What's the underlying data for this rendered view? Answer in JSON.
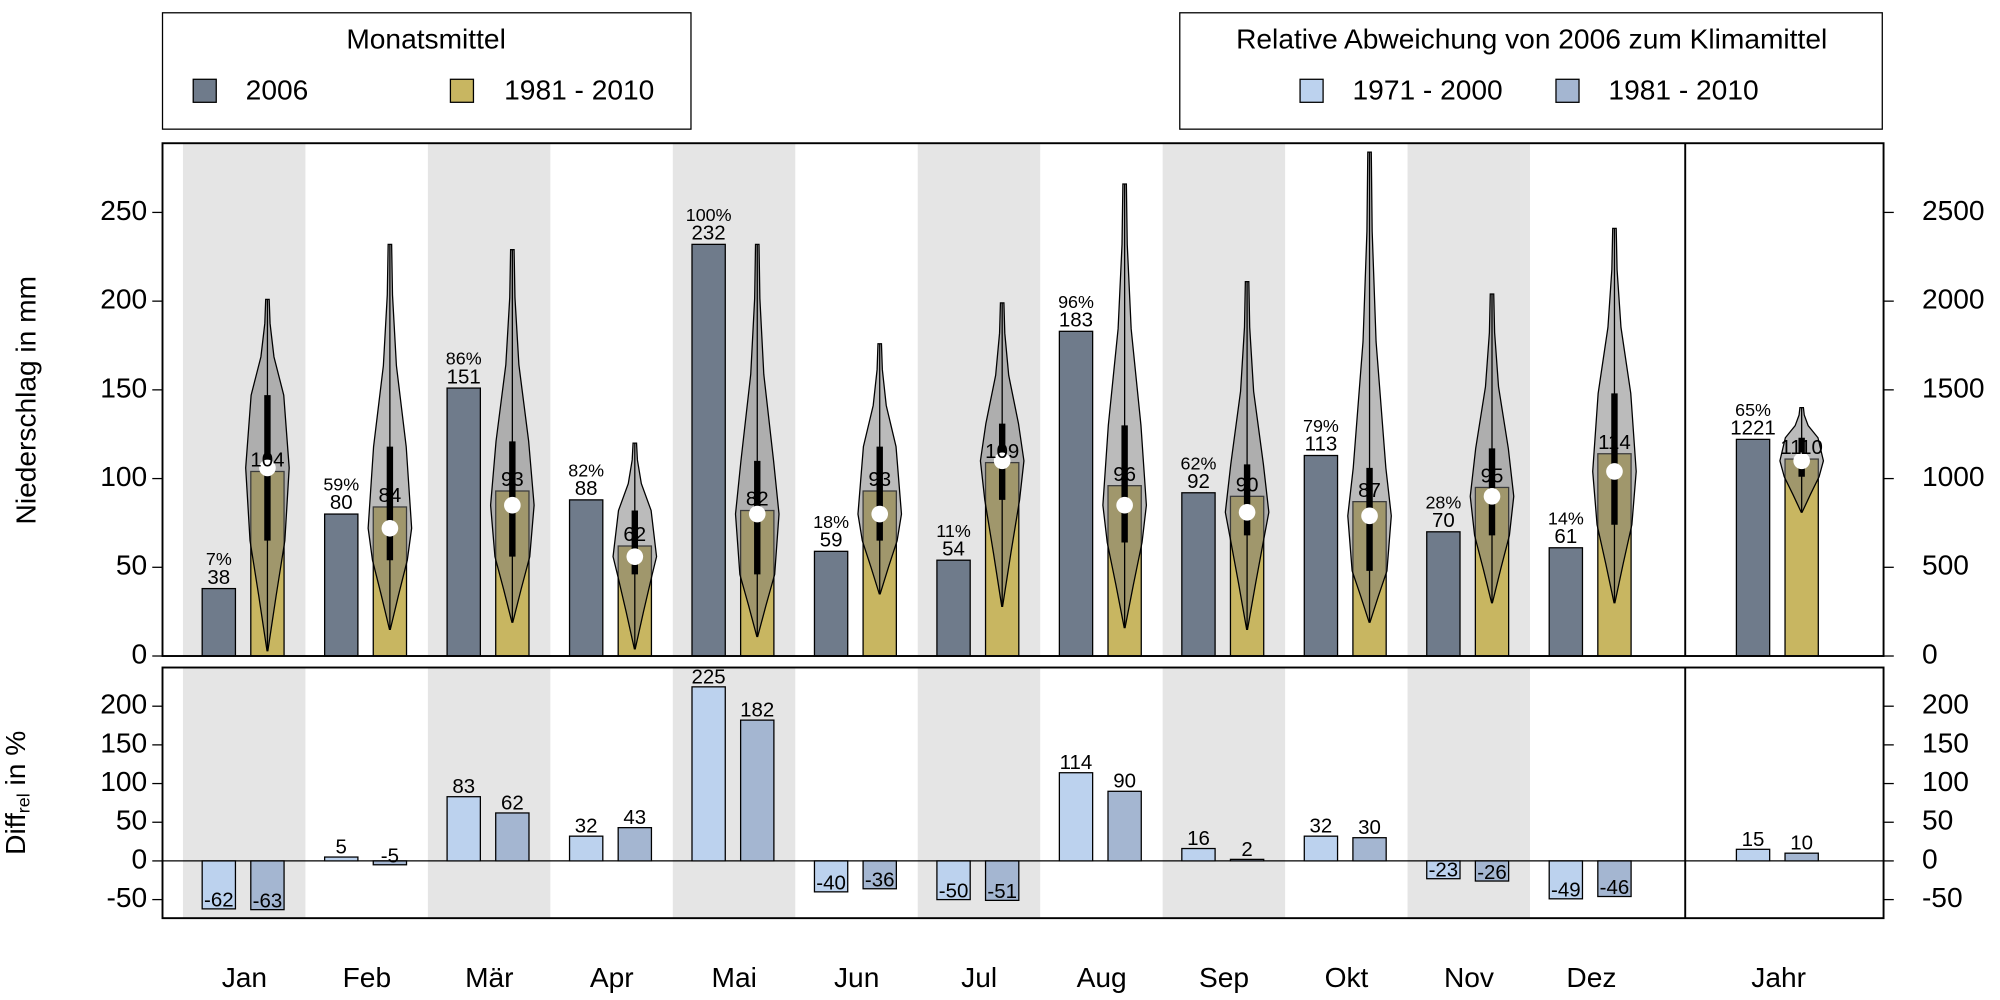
{
  "chart_data": [
    {
      "type": "bar",
      "ylabel": "Niederschlag in mm",
      "legend_title": "Monatsmittel",
      "categories": [
        "Jan",
        "Feb",
        "Mär",
        "Apr",
        "Mai",
        "Jun",
        "Jul",
        "Aug",
        "Sep",
        "Okt",
        "Nov",
        "Dez",
        "Jahr"
      ],
      "y2_category": "Jahr",
      "series": [
        {
          "name": "2006",
          "color": "#6f7b8b",
          "values": [
            38,
            80,
            151,
            88,
            232,
            59,
            54,
            183,
            92,
            113,
            70,
            61,
            1221
          ],
          "percent_labels": [
            "7%",
            "59%",
            "86%",
            "82%",
            "100%",
            "18%",
            "11%",
            "96%",
            "62%",
            "79%",
            "28%",
            "14%",
            "65%"
          ]
        },
        {
          "name": "1981 - 2010",
          "color": "#c8b661",
          "values": [
            104,
            84,
            93,
            62,
            82,
            93,
            109,
            96,
            90,
            87,
            95,
            114,
            1110
          ]
        }
      ],
      "violin_min": [
        3,
        15,
        19,
        4,
        11,
        35,
        28,
        16,
        15,
        19,
        30,
        30,
        810
      ],
      "violin_max": [
        201,
        232,
        229,
        120,
        232,
        176,
        199,
        266,
        211,
        284,
        204,
        241,
        1400
      ],
      "violin_q1": [
        65,
        54,
        56,
        46,
        46,
        65,
        88,
        64,
        68,
        48,
        68,
        74,
        1010
      ],
      "violin_q3": [
        147,
        118,
        121,
        82,
        110,
        118,
        131,
        130,
        108,
        106,
        117,
        148,
        1230
      ],
      "violin_median": [
        106,
        72,
        85,
        56,
        80,
        80,
        110,
        85,
        81,
        79,
        90,
        104,
        1100
      ],
      "ylim": [
        0,
        289
      ],
      "yticks": [
        0,
        50,
        100,
        150,
        200,
        250
      ],
      "y2lim": [
        0,
        2890
      ],
      "y2ticks": [
        0,
        500,
        1000,
        1500,
        2000,
        2500
      ]
    },
    {
      "type": "bar",
      "ylabel": "Diff",
      "ylabel_sub": "rel",
      "ylabel_suffix": " in %",
      "legend_title": "Relative Abweichung von 2006 zum Klimamittel",
      "series": [
        {
          "name": "1971 - 2000",
          "color": "#bcd2ee",
          "values": [
            -62,
            5,
            83,
            32,
            225,
            -40,
            -50,
            114,
            16,
            32,
            -23,
            -49,
            15
          ]
        },
        {
          "name": "1981 - 2010",
          "color": "#a4b6d1",
          "values": [
            -63,
            -5,
            62,
            43,
            182,
            -36,
            -51,
            90,
            2,
            30,
            -26,
            -46,
            10
          ]
        }
      ],
      "ylim": [
        -74,
        250
      ],
      "yticks": [
        -50,
        0,
        50,
        100,
        150,
        200
      ],
      "y2lim": [
        -74,
        250
      ],
      "y2ticks": [
        -50,
        0,
        50,
        100,
        150,
        200
      ]
    }
  ]
}
